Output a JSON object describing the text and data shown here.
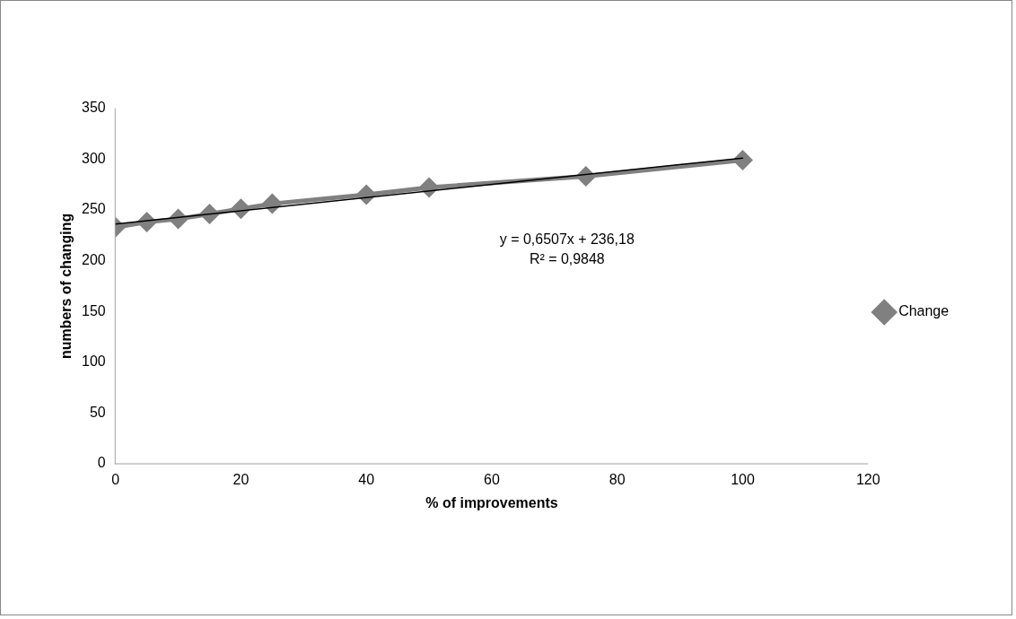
{
  "chart_data": {
    "type": "line",
    "xlabel": "% of improvements",
    "ylabel": "numbers of changing",
    "xlim": [
      0,
      120
    ],
    "xticks": [
      0,
      20,
      40,
      60,
      80,
      100,
      120
    ],
    "ylim": [
      0,
      350
    ],
    "yticks": [
      0,
      50,
      100,
      150,
      200,
      250,
      300,
      350
    ],
    "x": [
      0,
      5,
      10,
      15,
      20,
      25,
      40,
      50,
      75,
      100
    ],
    "series": [
      {
        "name": "Change",
        "color": "#808080",
        "values": [
          233,
          238,
          241,
          246,
          251,
          256,
          265,
          272,
          283,
          299
        ],
        "marker": "diamond"
      },
      {
        "type": "line",
        "color": "#000000",
        "x": [
          0,
          100
        ],
        "values": [
          236,
          301
        ],
        "marker": "none"
      }
    ],
    "annotations": [
      "y = 0,6507x + 236,18",
      "R² = 0,9848"
    ],
    "legend": "right",
    "grid": false,
    "line_style": "solid"
  }
}
